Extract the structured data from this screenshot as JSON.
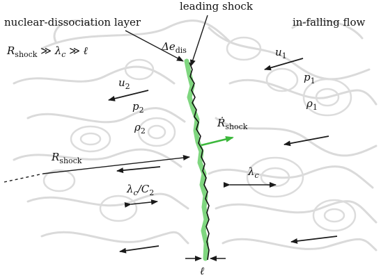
{
  "labels": {
    "leading_shock": "leading shock",
    "nuclear_dissociation_layer": "nuclear-dissociation layer",
    "in_falling_flow": "in-falling flow",
    "scale_relation": "R_shock ≫ λ_c ≫ ℓ",
    "delta_e_dis": "Δe_dis",
    "u1": "u_1",
    "p1": "p_1",
    "rho1": "ρ_1",
    "u2": "u_2",
    "p2": "p_2",
    "rho2": "ρ_2",
    "rdot_shock": "Ṙ_shock",
    "r_shock": "R_shock",
    "lambda_c": "λ_c",
    "lambda_c_over_c2": "λ_c/C_2",
    "ell": "ℓ"
  },
  "math": {
    "R": "R",
    "shock_sub": "shock",
    "much_greater": " ≫ ",
    "lambda": "λ",
    "c_sub": "c",
    "ell": "ℓ",
    "Delta_e": "Δe",
    "dis_sub": "dis",
    "u": "u",
    "p": "p",
    "rho": "ρ",
    "one": "1",
    "two": "2",
    "Rdot": "Ṙ",
    "slash_C": "/C"
  },
  "colors": {
    "shock_layer": "#7fd67f",
    "shock_line": "#111111",
    "velocity_arrow": "#6fc96f",
    "background_swirls": "#d9d9d9",
    "arrows": "#1a1a1a"
  }
}
